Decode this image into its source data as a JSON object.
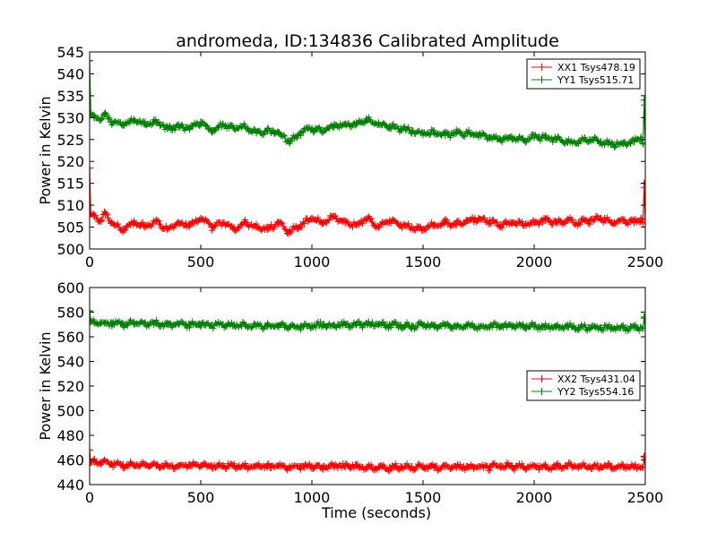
{
  "figure": {
    "title": "andromeda, ID:134836 Calibrated Amplitude"
  },
  "chart_data": [
    {
      "type": "line",
      "title": "andromeda, ID:134836 Calibrated Amplitude",
      "xlabel": "",
      "ylabel": "Power in Kelvin",
      "xlim": [
        0,
        2500
      ],
      "ylim": [
        500,
        545
      ],
      "xticks": [
        0,
        500,
        1000,
        1500,
        2000,
        2500
      ],
      "yticks": [
        500,
        505,
        510,
        515,
        520,
        525,
        530,
        535,
        540,
        545
      ],
      "legend_position": "top-right",
      "series": [
        {
          "name": "XX1 Tsys478.19",
          "color": "#ff0000",
          "marker": "plus",
          "x": [
            0,
            5,
            20,
            50,
            70,
            100,
            150,
            200,
            250,
            300,
            350,
            400,
            450,
            500,
            550,
            600,
            650,
            700,
            750,
            800,
            850,
            900,
            950,
            1000,
            1050,
            1100,
            1150,
            1200,
            1250,
            1300,
            1350,
            1400,
            1450,
            1500,
            1550,
            1600,
            1650,
            1700,
            1750,
            1800,
            1850,
            1900,
            1950,
            2000,
            2050,
            2100,
            2150,
            2200,
            2250,
            2300,
            2350,
            2400,
            2450,
            2480,
            2490,
            2495,
            2500
          ],
          "y": [
            518.5,
            508,
            507.5,
            506.5,
            508,
            506,
            504.5,
            506,
            505,
            506.5,
            504.5,
            506,
            505.5,
            507,
            505,
            506,
            504.5,
            506,
            505,
            504.5,
            506,
            504,
            505.5,
            507,
            506,
            507.5,
            506,
            505.5,
            507,
            505,
            506.5,
            505.5,
            505,
            504.5,
            505.5,
            506,
            505.5,
            506.5,
            507,
            506.5,
            505.5,
            506,
            505.5,
            506,
            506.5,
            506,
            506.5,
            506,
            506.5,
            507,
            506,
            506.5,
            506,
            507,
            506,
            515,
            506
          ]
        },
        {
          "name": "YY1 Tsys515.71",
          "color": "#008000",
          "marker": "plus",
          "x": [
            0,
            5,
            20,
            50,
            70,
            100,
            150,
            200,
            250,
            300,
            350,
            400,
            450,
            500,
            550,
            600,
            650,
            700,
            750,
            800,
            850,
            900,
            950,
            1000,
            1050,
            1100,
            1150,
            1200,
            1250,
            1300,
            1350,
            1400,
            1450,
            1500,
            1550,
            1600,
            1650,
            1700,
            1750,
            1800,
            1850,
            1900,
            1950,
            2000,
            2050,
            2100,
            2150,
            2200,
            2250,
            2300,
            2350,
            2400,
            2450,
            2480,
            2490,
            2495,
            2500
          ],
          "y": [
            543,
            531,
            530,
            529.5,
            531,
            529,
            528.5,
            529.5,
            528.5,
            529,
            527.5,
            528,
            527.5,
            529,
            527,
            528.5,
            527.5,
            528,
            526.5,
            527,
            526.5,
            524.5,
            526.5,
            527.5,
            527,
            528,
            528.5,
            528.5,
            529.5,
            528.5,
            528,
            527.5,
            527,
            526.5,
            526.5,
            526,
            526.5,
            526.5,
            526,
            525.5,
            525,
            525.5,
            525,
            525.5,
            525.5,
            525,
            524.5,
            524.5,
            525,
            524.5,
            524,
            524,
            524.5,
            525.5,
            524,
            534,
            524
          ]
        }
      ]
    },
    {
      "type": "line",
      "title": "",
      "xlabel": "Time (seconds)",
      "ylabel": "Power in Kelvin",
      "xlim": [
        0,
        2500
      ],
      "ylim": [
        440,
        600
      ],
      "xticks": [
        0,
        500,
        1000,
        1500,
        2000,
        2500
      ],
      "yticks": [
        440,
        460,
        480,
        500,
        520,
        540,
        560,
        580,
        600
      ],
      "legend_position": "center-right",
      "series": [
        {
          "name": "XX2 Tsys431.04",
          "color": "#ff0000",
          "marker": "plus",
          "x": [
            0,
            5,
            20,
            50,
            100,
            150,
            200,
            250,
            300,
            350,
            400,
            450,
            500,
            550,
            600,
            650,
            700,
            750,
            800,
            850,
            900,
            950,
            1000,
            1050,
            1100,
            1150,
            1200,
            1250,
            1300,
            1350,
            1400,
            1450,
            1500,
            1550,
            1600,
            1650,
            1700,
            1750,
            1800,
            1850,
            1900,
            1950,
            2000,
            2050,
            2100,
            2150,
            2200,
            2250,
            2300,
            2350,
            2400,
            2450,
            2490,
            2495,
            2500
          ],
          "y": [
            468,
            458,
            458.5,
            458,
            456.5,
            456,
            455.5,
            456,
            455.5,
            455.5,
            455,
            455.5,
            455,
            455,
            455.5,
            455,
            454.5,
            455,
            454.5,
            455,
            454.5,
            454.5,
            455,
            454.5,
            455,
            454.5,
            455,
            454,
            454.5,
            454,
            454.5,
            454.5,
            454,
            454,
            454.5,
            454,
            454.5,
            454.5,
            454.5,
            455,
            454.5,
            454.5,
            455,
            454.5,
            454.5,
            455,
            454.5,
            454.5,
            454.5,
            454.5,
            454.5,
            454.5,
            454,
            463,
            454
          ]
        },
        {
          "name": "YY2 Tsys554.16",
          "color": "#008000",
          "marker": "plus",
          "x": [
            0,
            5,
            20,
            50,
            100,
            150,
            200,
            250,
            300,
            350,
            400,
            450,
            500,
            550,
            600,
            650,
            700,
            750,
            800,
            850,
            900,
            950,
            1000,
            1050,
            1100,
            1150,
            1200,
            1250,
            1300,
            1350,
            1400,
            1450,
            1500,
            1550,
            1600,
            1650,
            1700,
            1750,
            1800,
            1850,
            1900,
            1950,
            2000,
            2050,
            2100,
            2150,
            2200,
            2250,
            2300,
            2350,
            2400,
            2450,
            2490,
            2495,
            2500
          ],
          "y": [
            581,
            572.5,
            572,
            571.5,
            571,
            570.5,
            570.5,
            570.5,
            571,
            570,
            570.5,
            569.5,
            570,
            569.5,
            570,
            569.5,
            569.5,
            569,
            569,
            569,
            568,
            568.5,
            569,
            569.5,
            569.5,
            570,
            570,
            570,
            570,
            569.5,
            569.5,
            569,
            569,
            569,
            569,
            568.5,
            569,
            568.5,
            568.5,
            568.5,
            568.5,
            568.5,
            568.5,
            568,
            568,
            568,
            567.5,
            567.5,
            567.5,
            567.5,
            567.5,
            567.5,
            567,
            576,
            567
          ]
        }
      ]
    }
  ]
}
